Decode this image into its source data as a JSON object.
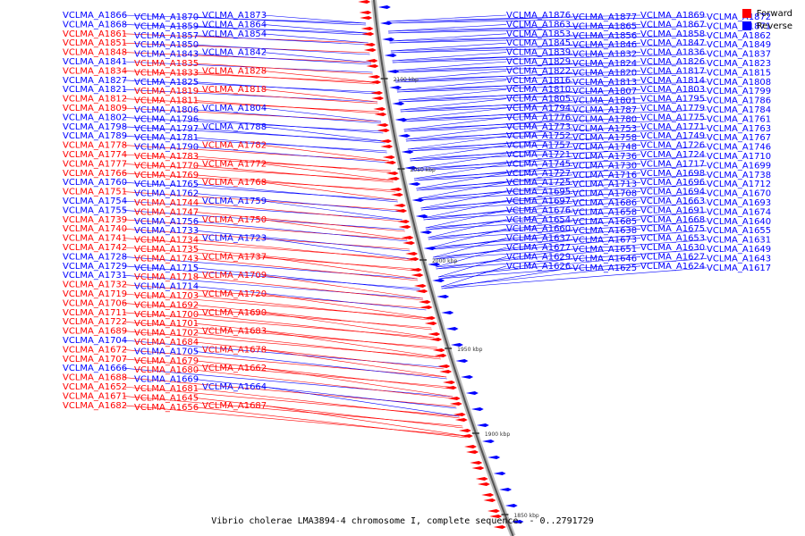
{
  "legend": {
    "forward_label": "Forward",
    "reverse_label": "Reverse",
    "forward_color": "#ff0000",
    "reverse_color": "#0000ff"
  },
  "footer_text": "Vibrio cholerae LMA3894-4 chromosome I, complete sequence. - 0..2791729",
  "axis_ticks": [
    "2100 kbp",
    "2050 kbp",
    "2000 kbp",
    "1950 kbp",
    "1900 kbp",
    "1850 kbp"
  ],
  "left_labels": [
    {
      "t": "VCLMA_A1866",
      "s": "r"
    },
    {
      "t": "VCLMA_A1870",
      "s": "r"
    },
    {
      "t": "VCLMA_A1873",
      "s": "r"
    },
    {
      "t": "VCLMA_A1868",
      "s": "r"
    },
    {
      "t": "VCLMA_A1859",
      "s": "r"
    },
    {
      "t": "VCLMA_A1864",
      "s": "r"
    },
    {
      "t": "VCLMA_A1861",
      "s": "f"
    },
    {
      "t": "VCLMA_A1857",
      "s": "r"
    },
    {
      "t": "VCLMA_A1854",
      "s": "r"
    },
    {
      "t": "VCLMA_A1851",
      "s": "f"
    },
    {
      "t": "VCLMA_A1850",
      "s": "r"
    },
    {
      "t": "VCLMA_A1848",
      "s": "f"
    },
    {
      "t": "VCLMA_A1843",
      "s": "r"
    },
    {
      "t": "VCLMA_A1842",
      "s": "r"
    },
    {
      "t": "VCLMA_A1841",
      "s": "r"
    },
    {
      "t": "VCLMA_A1835",
      "s": "f"
    },
    {
      "t": "VCLMA_A1834",
      "s": "f"
    },
    {
      "t": "VCLMA_A1833",
      "s": "f"
    },
    {
      "t": "VCLMA_A1828",
      "s": "f"
    },
    {
      "t": "VCLMA_A1827",
      "s": "r"
    },
    {
      "t": "VCLMA_A1825",
      "s": "r"
    },
    {
      "t": "VCLMA_A1821",
      "s": "r"
    },
    {
      "t": "VCLMA_A1819",
      "s": "f"
    },
    {
      "t": "VCLMA_A1818",
      "s": "f"
    },
    {
      "t": "VCLMA_A1812",
      "s": "f"
    },
    {
      "t": "VCLMA_A1811",
      "s": "f"
    },
    {
      "t": "VCLMA_A1809",
      "s": "f"
    },
    {
      "t": "VCLMA_A1806",
      "s": "r"
    },
    {
      "t": "VCLMA_A1804",
      "s": "r"
    },
    {
      "t": "VCLMA_A1802",
      "s": "r"
    },
    {
      "t": "VCLMA_A1796",
      "s": "r"
    },
    {
      "t": "VCLMA_A1798",
      "s": "r"
    },
    {
      "t": "VCLMA_A1797",
      "s": "r"
    },
    {
      "t": "VCLMA_A1788",
      "s": "r"
    },
    {
      "t": "VCLMA_A1789",
      "s": "r"
    },
    {
      "t": "VCLMA_A1781",
      "s": "r"
    },
    {
      "t": "VCLMA_A1778",
      "s": "f"
    },
    {
      "t": "VCLMA_A1790",
      "s": "r"
    },
    {
      "t": "VCLMA_A1782",
      "s": "f"
    },
    {
      "t": "VCLMA_A1774",
      "s": "f"
    },
    {
      "t": "VCLMA_A1783",
      "s": "f"
    },
    {
      "t": "VCLMA_A1777",
      "s": "f"
    },
    {
      "t": "VCLMA_A1770",
      "s": "f"
    },
    {
      "t": "VCLMA_A1772",
      "s": "f"
    },
    {
      "t": "VCLMA_A1766",
      "s": "f"
    },
    {
      "t": "VCLMA_A1769",
      "s": "f"
    },
    {
      "t": "VCLMA_A1760",
      "s": "r"
    },
    {
      "t": "VCLMA_A1765",
      "s": "r"
    },
    {
      "t": "VCLMA_A1768",
      "s": "f"
    },
    {
      "t": "VCLMA_A1751",
      "s": "f"
    },
    {
      "t": "VCLMA_A1762",
      "s": "r"
    },
    {
      "t": "VCLMA_A1754",
      "s": "r"
    },
    {
      "t": "VCLMA_A1744",
      "s": "f"
    },
    {
      "t": "VCLMA_A1759",
      "s": "r"
    },
    {
      "t": "VCLMA_A1755",
      "s": "r"
    },
    {
      "t": "VCLMA_A1747",
      "s": "f"
    },
    {
      "t": "VCLMA_A1739",
      "s": "f"
    },
    {
      "t": "VCLMA_A1756",
      "s": "r"
    },
    {
      "t": "VCLMA_A1750",
      "s": "f"
    },
    {
      "t": "VCLMA_A1740",
      "s": "f"
    },
    {
      "t": "VCLMA_A1733",
      "s": "r"
    },
    {
      "t": "VCLMA_A1741",
      "s": "f"
    },
    {
      "t": "VCLMA_A1734",
      "s": "f"
    },
    {
      "t": "VCLMA_A1723",
      "s": "r"
    },
    {
      "t": "VCLMA_A1742",
      "s": "f"
    },
    {
      "t": "VCLMA_A1735",
      "s": "f"
    },
    {
      "t": "VCLMA_A1728",
      "s": "r"
    },
    {
      "t": "VCLMA_A1743",
      "s": "f"
    },
    {
      "t": "VCLMA_A1737",
      "s": "f"
    },
    {
      "t": "VCLMA_A1729",
      "s": "r"
    },
    {
      "t": "VCLMA_A1715",
      "s": "r"
    },
    {
      "t": "VCLMA_A1731",
      "s": "r"
    },
    {
      "t": "VCLMA_A1718",
      "s": "f"
    },
    {
      "t": "VCLMA_A1709",
      "s": "f"
    },
    {
      "t": "VCLMA_A1732",
      "s": "f"
    },
    {
      "t": "VCLMA_A1714",
      "s": "r"
    },
    {
      "t": "VCLMA_A1719",
      "s": "f"
    },
    {
      "t": "VCLMA_A1703",
      "s": "f"
    },
    {
      "t": "VCLMA_A1720",
      "s": "f"
    },
    {
      "t": "VCLMA_A1706",
      "s": "f"
    },
    {
      "t": "VCLMA_A1692",
      "s": "f"
    },
    {
      "t": "VCLMA_A1711",
      "s": "f"
    },
    {
      "t": "VCLMA_A1700",
      "s": "f"
    },
    {
      "t": "VCLMA_A1690",
      "s": "f"
    },
    {
      "t": "VCLMA_A1722",
      "s": "f"
    },
    {
      "t": "VCLMA_A1701",
      "s": "f"
    },
    {
      "t": "VCLMA_A1689",
      "s": "f"
    },
    {
      "t": "VCLMA_A1702",
      "s": "f"
    },
    {
      "t": "VCLMA_A1683",
      "s": "f"
    },
    {
      "t": "VCLMA_A1704",
      "s": "r"
    },
    {
      "t": "VCLMA_A1684",
      "s": "f"
    },
    {
      "t": "VCLMA_A1672",
      "s": "f"
    },
    {
      "t": "VCLMA_A1705",
      "s": "r"
    },
    {
      "t": "VCLMA_A1678",
      "s": "f"
    },
    {
      "t": "VCLMA_A1707",
      "s": "f"
    },
    {
      "t": "VCLMA_A1679",
      "s": "f"
    },
    {
      "t": "VCLMA_A1666",
      "s": "r"
    },
    {
      "t": "VCLMA_A1680",
      "s": "f"
    },
    {
      "t": "VCLMA_A1662",
      "s": "f"
    },
    {
      "t": "VCLMA_A1688",
      "s": "f"
    },
    {
      "t": "VCLMA_A1669",
      "s": "r"
    },
    {
      "t": "VCLMA_A1652",
      "s": "f"
    },
    {
      "t": "VCLMA_A1681",
      "s": "f"
    },
    {
      "t": "VCLMA_A1664",
      "s": "r"
    },
    {
      "t": "VCLMA_A1671",
      "s": "f"
    },
    {
      "t": "VCLMA_A1645",
      "s": "f"
    },
    {
      "t": "VCLMA_A1682",
      "s": "f"
    },
    {
      "t": "VCLMA_A1656",
      "s": "f"
    },
    {
      "t": "VCLMA_A1687",
      "s": "f"
    }
  ],
  "right_labels": [
    {
      "t": "VCLMA_A1876",
      "s": "r"
    },
    {
      "t": "VCLMA_A1877",
      "s": "r"
    },
    {
      "t": "VCLMA_A1869",
      "s": "r"
    },
    {
      "t": "VCLMA_A1872",
      "s": "r"
    },
    {
      "t": "VCLMA_A1863",
      "s": "r"
    },
    {
      "t": "VCLMA_A1865",
      "s": "r"
    },
    {
      "t": "VCLMA_A1867",
      "s": "r"
    },
    {
      "t": "VCLMA_A1871",
      "s": "r"
    },
    {
      "t": "VCLMA_A1853",
      "s": "r"
    },
    {
      "t": "VCLMA_A1856",
      "s": "r"
    },
    {
      "t": "VCLMA_A1858",
      "s": "r"
    },
    {
      "t": "VCLMA_A1862",
      "s": "r"
    },
    {
      "t": "VCLMA_A1845",
      "s": "r"
    },
    {
      "t": "VCLMA_A1846",
      "s": "r"
    },
    {
      "t": "VCLMA_A1847",
      "s": "r"
    },
    {
      "t": "VCLMA_A1849",
      "s": "r"
    },
    {
      "t": "VCLMA_A1839",
      "s": "r"
    },
    {
      "t": "VCLMA_A1832",
      "s": "r"
    },
    {
      "t": "VCLMA_A1836",
      "s": "r"
    },
    {
      "t": "VCLMA_A1837",
      "s": "r"
    },
    {
      "t": "VCLMA_A1829",
      "s": "r"
    },
    {
      "t": "VCLMA_A1824",
      "s": "r"
    },
    {
      "t": "VCLMA_A1826",
      "s": "r"
    },
    {
      "t": "VCLMA_A1823",
      "s": "r"
    },
    {
      "t": "VCLMA_A1822",
      "s": "r"
    },
    {
      "t": "VCLMA_A1820",
      "s": "r"
    },
    {
      "t": "VCLMA_A1817",
      "s": "r"
    },
    {
      "t": "VCLMA_A1815",
      "s": "r"
    },
    {
      "t": "VCLMA_A1816",
      "s": "r"
    },
    {
      "t": "VCLMA_A1813",
      "s": "r"
    },
    {
      "t": "VCLMA_A1814",
      "s": "r"
    },
    {
      "t": "VCLMA_A1808",
      "s": "r"
    },
    {
      "t": "VCLMA_A1810",
      "s": "r"
    },
    {
      "t": "VCLMA_A1807",
      "s": "r"
    },
    {
      "t": "VCLMA_A1803",
      "s": "r"
    },
    {
      "t": "VCLMA_A1799",
      "s": "r"
    },
    {
      "t": "VCLMA_A1805",
      "s": "r"
    },
    {
      "t": "VCLMA_A1801",
      "s": "r"
    },
    {
      "t": "VCLMA_A1795",
      "s": "r"
    },
    {
      "t": "VCLMA_A1786",
      "s": "r"
    },
    {
      "t": "VCLMA_A1794",
      "s": "r"
    },
    {
      "t": "VCLMA_A1787",
      "s": "r"
    },
    {
      "t": "VCLMA_A1779",
      "s": "r"
    },
    {
      "t": "VCLMA_A1784",
      "s": "r"
    },
    {
      "t": "VCLMA_A1776",
      "s": "r"
    },
    {
      "t": "VCLMA_A1780",
      "s": "r"
    },
    {
      "t": "VCLMA_A1775",
      "s": "r"
    },
    {
      "t": "VCLMA_A1761",
      "s": "r"
    },
    {
      "t": "VCLMA_A1773",
      "s": "r"
    },
    {
      "t": "VCLMA_A1753",
      "s": "r"
    },
    {
      "t": "VCLMA_A1771",
      "s": "r"
    },
    {
      "t": "VCLMA_A1763",
      "s": "r"
    },
    {
      "t": "VCLMA_A1752",
      "s": "r"
    },
    {
      "t": "VCLMA_A1758",
      "s": "r"
    },
    {
      "t": "VCLMA_A1749",
      "s": "r"
    },
    {
      "t": "VCLMA_A1767",
      "s": "r"
    },
    {
      "t": "VCLMA_A1757",
      "s": "r"
    },
    {
      "t": "VCLMA_A1748",
      "s": "r"
    },
    {
      "t": "VCLMA_A1726",
      "s": "r"
    },
    {
      "t": "VCLMA_A1746",
      "s": "r"
    },
    {
      "t": "VCLMA_A1721",
      "s": "r"
    },
    {
      "t": "VCLMA_A1736",
      "s": "r"
    },
    {
      "t": "VCLMA_A1724",
      "s": "r"
    },
    {
      "t": "VCLMA_A1710",
      "s": "r"
    },
    {
      "t": "VCLMA_A1745",
      "s": "r"
    },
    {
      "t": "VCLMA_A1730",
      "s": "r"
    },
    {
      "t": "VCLMA_A1717",
      "s": "r"
    },
    {
      "t": "VCLMA_A1699",
      "s": "r"
    },
    {
      "t": "VCLMA_A1727",
      "s": "r"
    },
    {
      "t": "VCLMA_A1716",
      "s": "r"
    },
    {
      "t": "VCLMA_A1698",
      "s": "r"
    },
    {
      "t": "VCLMA_A1738",
      "s": "r"
    },
    {
      "t": "VCLMA_A1725",
      "s": "r"
    },
    {
      "t": "VCLMA_A1713",
      "s": "r"
    },
    {
      "t": "VCLMA_A1696",
      "s": "r"
    },
    {
      "t": "VCLMA_A1712",
      "s": "r"
    },
    {
      "t": "VCLMA_A1695",
      "s": "r"
    },
    {
      "t": "VCLMA_A1708",
      "s": "r"
    },
    {
      "t": "VCLMA_A1694",
      "s": "r"
    },
    {
      "t": "VCLMA_A1670",
      "s": "r"
    },
    {
      "t": "VCLMA_A1697",
      "s": "r"
    },
    {
      "t": "VCLMA_A1686",
      "s": "r"
    },
    {
      "t": "VCLMA_A1663",
      "s": "r"
    },
    {
      "t": "VCLMA_A1693",
      "s": "r"
    },
    {
      "t": "VCLMA_A1676",
      "s": "r"
    },
    {
      "t": "VCLMA_A1658",
      "s": "r"
    },
    {
      "t": "VCLMA_A1691",
      "s": "r"
    },
    {
      "t": "VCLMA_A1674",
      "s": "r"
    },
    {
      "t": "VCLMA_A1654",
      "s": "r"
    },
    {
      "t": "VCLMA_A1685",
      "s": "r"
    },
    {
      "t": "VCLMA_A1668",
      "s": "r"
    },
    {
      "t": "VCLMA_A1640",
      "s": "r"
    },
    {
      "t": "VCLMA_A1660",
      "s": "r"
    },
    {
      "t": "VCLMA_A1638",
      "s": "r"
    },
    {
      "t": "VCLMA_A1675",
      "s": "r"
    },
    {
      "t": "VCLMA_A1655",
      "s": "r"
    },
    {
      "t": "VCLMA_A1637",
      "s": "r"
    },
    {
      "t": "VCLMA_A1673",
      "s": "r"
    },
    {
      "t": "VCLMA_A1653",
      "s": "r"
    },
    {
      "t": "VCLMA_A1631",
      "s": "r"
    },
    {
      "t": "VCLMA_A1677",
      "s": "r"
    },
    {
      "t": "VCLMA_A1651",
      "s": "r"
    },
    {
      "t": "VCLMA_A1630",
      "s": "r"
    },
    {
      "t": "VCLMA_A1649",
      "s": "r"
    },
    {
      "t": "VCLMA_A1629",
      "s": "r"
    },
    {
      "t": "VCLMA_A1646",
      "s": "r"
    },
    {
      "t": "VCLMA_A1627",
      "s": "r"
    },
    {
      "t": "VCLMA_A1643",
      "s": "r"
    },
    {
      "t": "VCLMA_A1626",
      "s": "r"
    },
    {
      "t": "VCLMA_A1625",
      "s": "r"
    },
    {
      "t": "VCLMA_A1624",
      "s": "r"
    },
    {
      "t": "VCLMA_A1617",
      "s": "r"
    }
  ]
}
